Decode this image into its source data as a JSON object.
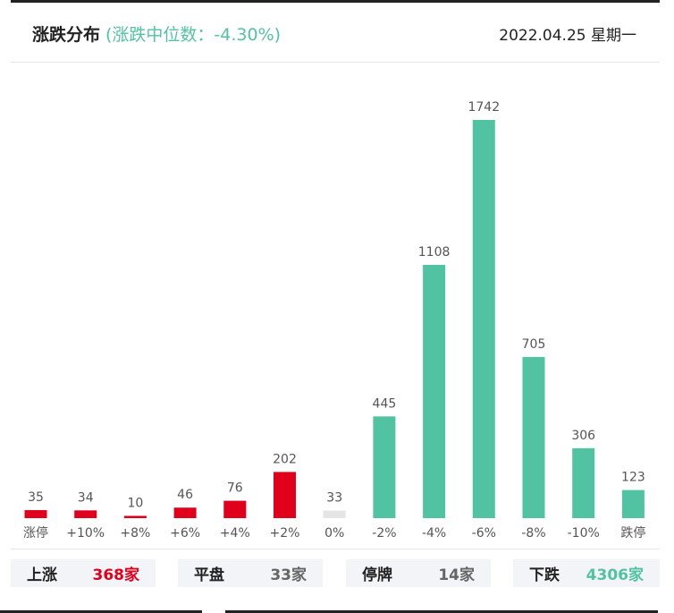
{
  "header": {
    "title": "涨跌分布",
    "median": "(涨跌中位数：-4.30%)",
    "date": "2022.04.25 星期一"
  },
  "colors": {
    "up": "#e0001b",
    "flat": "#e5e5e5",
    "down": "#52c3a2"
  },
  "chart_data": {
    "type": "bar",
    "categories": [
      "涨停",
      "+10%",
      "+8%",
      "+6%",
      "+4%",
      "+2%",
      "0%",
      "-2%",
      "-4%",
      "-6%",
      "-8%",
      "-10%",
      "跌停"
    ],
    "values": [
      35,
      34,
      10,
      46,
      76,
      202,
      33,
      445,
      1108,
      1742,
      705,
      306,
      123
    ],
    "groups": [
      "up",
      "up",
      "up",
      "up",
      "up",
      "up",
      "flat",
      "down",
      "down",
      "down",
      "down",
      "down",
      "down"
    ],
    "ylim": [
      0,
      1742
    ],
    "grid": false
  },
  "stats": [
    {
      "label": "上涨",
      "value": "368家",
      "color": "#e0001b"
    },
    {
      "label": "平盘",
      "value": "33家",
      "color": "#666666"
    },
    {
      "label": "停牌",
      "value": "14家",
      "color": "#666666"
    },
    {
      "label": "下跌",
      "value": "4306家",
      "color": "#52c3a2"
    }
  ]
}
